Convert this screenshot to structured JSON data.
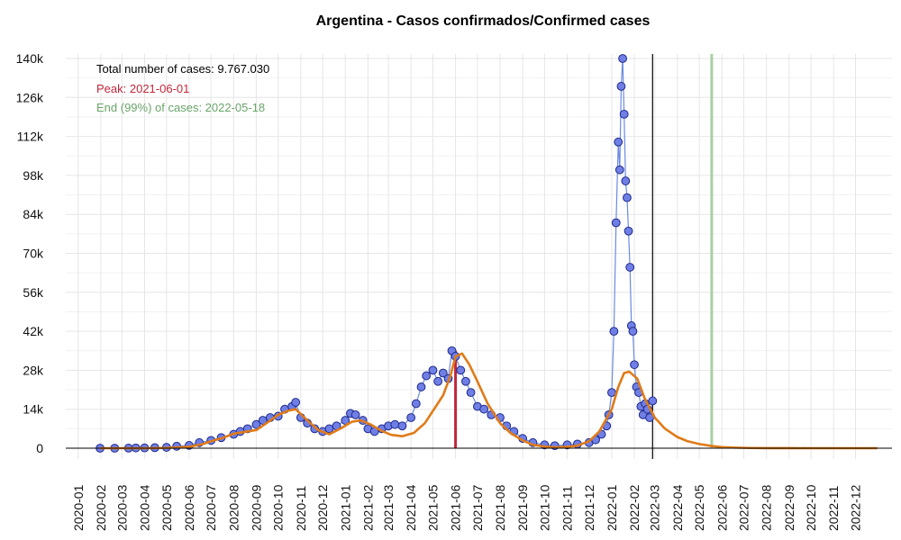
{
  "chart_data": {
    "type": "line",
    "title": "Argentina - Casos confirmados/Confirmed cases",
    "xlabel": "",
    "ylabel": "",
    "x_axis": "date",
    "xlim": [
      "2019-12-15",
      "2023-01-20"
    ],
    "ylim": [
      0,
      142000
    ],
    "grid": true,
    "yticks": [
      0,
      14000,
      28000,
      42000,
      56000,
      70000,
      84000,
      98000,
      112000,
      126000,
      140000
    ],
    "ytick_labels": [
      "0",
      "14k",
      "28k",
      "42k",
      "56k",
      "70k",
      "84k",
      "98k",
      "112k",
      "126k",
      "140k"
    ],
    "xtick_labels": [
      "2020-01",
      "2020-02",
      "2020-03",
      "2020-04",
      "2020-05",
      "2020-06",
      "2020-07",
      "2020-08",
      "2020-09",
      "2020-10",
      "2020-11",
      "2020-12",
      "2021-01",
      "2021-02",
      "2021-03",
      "2021-04",
      "2021-05",
      "2021-06",
      "2021-07",
      "2021-08",
      "2021-09",
      "2021-10",
      "2021-11",
      "2021-12",
      "2022-01",
      "2022-02",
      "2022-03",
      "2022-04",
      "2022-05",
      "2022-06",
      "2022-07",
      "2022-08",
      "2022-09",
      "2022-10",
      "2022-11",
      "2022-12"
    ],
    "annotations": {
      "total": "Total number of cases: 9.767.030",
      "peak": "Peak: 2021-06-01",
      "end": "End (99%) of cases: 2022-05-18"
    },
    "peak_date": "2021-06-01",
    "peak_value": 35000,
    "end_date": "2022-05-18",
    "current_date": "2022-02-26",
    "colors": {
      "points_fill": "#6f7fe6",
      "points_stroke": "#1f2a8a",
      "daily_line": "#6b8be0",
      "fit_line": "#e07b18",
      "peak_line": "#c1273a",
      "end_line": "#a9cfa4",
      "current_line": "#000000",
      "total_text": "#000000",
      "peak_text": "#c1273a",
      "end_text": "#6aa56a"
    },
    "daily_series": {
      "name": "",
      "x": [
        "2020-01-31",
        "2020-02-20",
        "2020-03-10",
        "2020-03-20",
        "2020-04-01",
        "2020-04-15",
        "2020-05-01",
        "2020-05-15",
        "2020-06-01",
        "2020-06-15",
        "2020-07-01",
        "2020-07-15",
        "2020-08-01",
        "2020-08-10",
        "2020-08-20",
        "2020-09-01",
        "2020-09-10",
        "2020-09-20",
        "2020-10-01",
        "2020-10-10",
        "2020-10-20",
        "2020-10-25",
        "2020-11-01",
        "2020-11-10",
        "2020-11-20",
        "2020-12-01",
        "2020-12-10",
        "2020-12-20",
        "2021-01-01",
        "2021-01-08",
        "2021-01-15",
        "2021-01-25",
        "2021-02-01",
        "2021-02-10",
        "2021-02-20",
        "2021-03-01",
        "2021-03-10",
        "2021-03-20",
        "2021-04-01",
        "2021-04-08",
        "2021-04-15",
        "2021-04-22",
        "2021-05-01",
        "2021-05-08",
        "2021-05-15",
        "2021-05-22",
        "2021-05-27",
        "2021-06-01",
        "2021-06-08",
        "2021-06-15",
        "2021-06-22",
        "2021-07-01",
        "2021-07-10",
        "2021-07-20",
        "2021-08-01",
        "2021-08-10",
        "2021-08-20",
        "2021-09-01",
        "2021-09-15",
        "2021-10-01",
        "2021-10-15",
        "2021-11-01",
        "2021-11-15",
        "2021-12-01",
        "2021-12-10",
        "2021-12-18",
        "2021-12-25",
        "2021-12-28",
        "2022-01-01",
        "2022-01-04",
        "2022-01-07",
        "2022-01-10",
        "2022-01-12",
        "2022-01-14",
        "2022-01-16",
        "2022-01-18",
        "2022-01-20",
        "2022-01-22",
        "2022-01-24",
        "2022-01-26",
        "2022-01-28",
        "2022-01-30",
        "2022-02-01",
        "2022-02-04",
        "2022-02-07",
        "2022-02-10",
        "2022-02-13",
        "2022-02-16",
        "2022-02-19",
        "2022-02-22",
        "2022-02-26"
      ],
      "y": [
        0,
        0,
        30,
        90,
        110,
        200,
        300,
        700,
        1000,
        2000,
        2800,
        3800,
        5000,
        6000,
        7000,
        8500,
        10000,
        11000,
        11500,
        14000,
        15000,
        16500,
        11000,
        9000,
        7000,
        6000,
        7000,
        8000,
        10000,
        12500,
        12000,
        10000,
        7000,
        6000,
        7000,
        8000,
        8500,
        8000,
        11000,
        16000,
        22000,
        26000,
        28000,
        24000,
        27000,
        25000,
        35000,
        33000,
        28000,
        24000,
        20000,
        15000,
        14000,
        12000,
        11000,
        8000,
        6000,
        3500,
        2000,
        1200,
        900,
        1200,
        1500,
        2000,
        3000,
        5000,
        8000,
        12000,
        20000,
        42000,
        81000,
        110000,
        100000,
        130000,
        140000,
        120000,
        96000,
        90000,
        78000,
        65000,
        44000,
        42000,
        30000,
        22000,
        20000,
        15000,
        12000,
        16000,
        14000,
        11000,
        17000
      ]
    },
    "fit_series": {
      "name": "",
      "x": [
        "2020-01-31",
        "2020-03-01",
        "2020-04-01",
        "2020-05-01",
        "2020-06-01",
        "2020-06-20",
        "2020-07-01",
        "2020-07-15",
        "2020-08-01",
        "2020-08-15",
        "2020-09-01",
        "2020-09-15",
        "2020-10-01",
        "2020-10-15",
        "2020-10-25",
        "2020-11-10",
        "2020-11-25",
        "2020-12-10",
        "2020-12-25",
        "2021-01-10",
        "2021-01-22",
        "2021-02-05",
        "2021-02-20",
        "2021-03-05",
        "2021-03-20",
        "2021-04-05",
        "2021-04-20",
        "2021-05-05",
        "2021-05-15",
        "2021-05-25",
        "2021-06-01",
        "2021-06-10",
        "2021-06-20",
        "2021-07-01",
        "2021-07-15",
        "2021-08-01",
        "2021-08-15",
        "2021-09-01",
        "2021-09-15",
        "2021-10-01",
        "2021-10-15",
        "2021-11-01",
        "2021-11-15",
        "2021-12-01",
        "2021-12-15",
        "2022-01-01",
        "2022-01-10",
        "2022-01-18",
        "2022-01-25",
        "2022-02-05",
        "2022-02-15",
        "2022-03-01",
        "2022-03-15",
        "2022-04-01",
        "2022-04-15",
        "2022-05-01",
        "2022-05-18",
        "2022-06-01",
        "2022-06-20",
        "2022-07-10",
        "2022-08-01",
        "2022-09-01",
        "2022-10-01",
        "2022-11-01",
        "2022-12-01",
        "2022-12-31"
      ],
      "y": [
        0,
        0,
        0,
        100,
        500,
        1500,
        2500,
        3500,
        5200,
        5800,
        6500,
        9000,
        12000,
        13500,
        14000,
        10000,
        6500,
        5000,
        7000,
        9500,
        10000,
        8500,
        6200,
        4800,
        4300,
        5500,
        9000,
        15000,
        19000,
        26000,
        33000,
        34000,
        30000,
        24000,
        16000,
        9000,
        5500,
        2800,
        1200,
        600,
        300,
        500,
        900,
        2500,
        6000,
        14000,
        22000,
        27000,
        27500,
        25000,
        18000,
        11000,
        7000,
        4000,
        2500,
        1500,
        800,
        400,
        200,
        80,
        30,
        10,
        0,
        0,
        0,
        0
      ]
    }
  }
}
